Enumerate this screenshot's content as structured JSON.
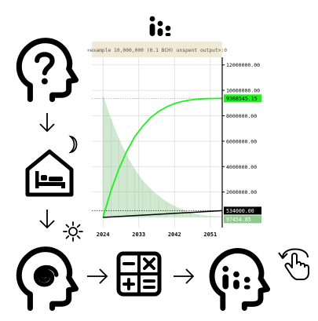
{
  "icons": {
    "top": "bar-stats-icon",
    "question_head": "question-head-icon",
    "night": "crescent-moon-icon",
    "house": "house-bed-icon",
    "day": "sun-icon",
    "spiral_head": "spiral-head-icon",
    "calculator": "calculator-icon",
    "stats_head": "stats-head-icon",
    "tap": "tap-rotate-icon"
  },
  "chart_data": {
    "type": "line",
    "caption": "<example 10,000,000 (0.1 BCH) unspent output>:0",
    "x_ticks": [
      "2024",
      "2033",
      "2042",
      "2051"
    ],
    "y_ticks": [
      "2000000.00",
      "4000000.00",
      "6000000.00",
      "8000000.00",
      "10000000.00",
      "12000000.00"
    ],
    "ylim": [
      -800000,
      12600000
    ],
    "xlim": [
      2021.2,
      2054
    ],
    "x_start": 2024,
    "x_end": 2054,
    "series": [
      {
        "color": "#22ee22",
        "points": [
          [
            2024,
            0
          ],
          [
            2026,
            2100000
          ],
          [
            2028,
            3820000
          ],
          [
            2030,
            5220000
          ],
          [
            2032,
            6360000
          ],
          [
            2034,
            7180000
          ],
          [
            2036,
            7860000
          ],
          [
            2038,
            8340000
          ],
          [
            2040,
            8700000
          ],
          [
            2042,
            8960000
          ],
          [
            2044,
            9130000
          ],
          [
            2046,
            9240000
          ],
          [
            2048,
            9310000
          ],
          [
            2050,
            9345000
          ],
          [
            2052,
            9360000
          ],
          [
            2054,
            9368545.15
          ]
        ]
      },
      {
        "color": "#000000",
        "points": [
          [
            2024,
            0
          ],
          [
            2054,
            534000
          ]
        ]
      }
    ],
    "area": {
      "color": "#8fc98f",
      "points": [
        [
          2024,
          9600000
        ],
        [
          2026,
          7800000
        ],
        [
          2028,
          6200000
        ],
        [
          2030,
          4900000
        ],
        [
          2032,
          3800000
        ],
        [
          2034,
          2900000
        ],
        [
          2036,
          2250000
        ],
        [
          2038,
          1700000
        ],
        [
          2040,
          1250000
        ],
        [
          2042,
          900000
        ],
        [
          2044,
          620000
        ],
        [
          2046,
          400000
        ],
        [
          2048,
          230000
        ],
        [
          2050,
          140000
        ],
        [
          2052,
          105000
        ],
        [
          2054,
          97454.85
        ]
      ]
    },
    "value_labels": [
      {
        "text": "9368545.15",
        "value": 9368545.15,
        "bg": "#22ee22",
        "fg": "#000000"
      },
      {
        "text": "534000.00",
        "value": 534000,
        "bg": "#000000",
        "fg": "#ffffff"
      },
      {
        "text": "97454.85",
        "value": 97454.85,
        "bg": "#8fc98f",
        "fg": "#ffffff"
      }
    ],
    "guide_lines": [
      9368545.15,
      534000
    ]
  }
}
